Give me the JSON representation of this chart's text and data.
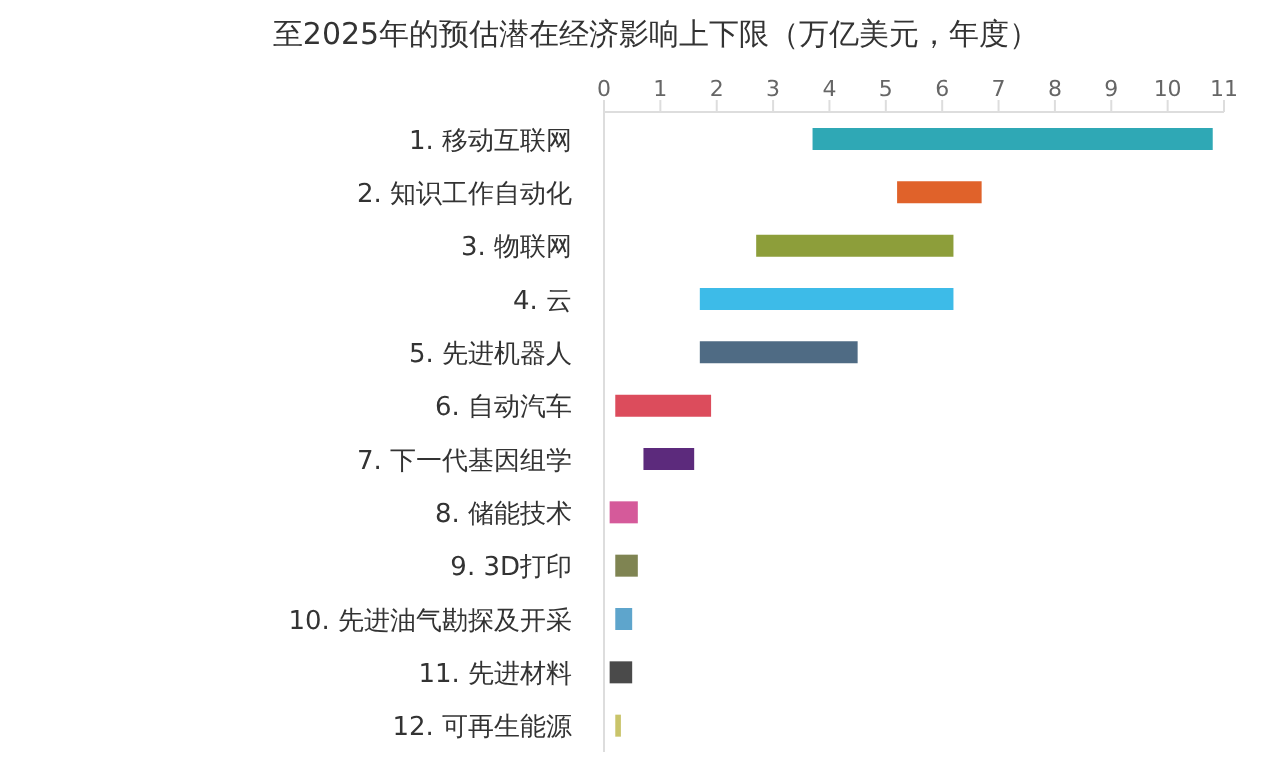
{
  "chart_data": {
    "type": "bar",
    "orientation": "horizontal",
    "title": "至2025年的预估潜在经济影响上下限（万亿美元，年度）",
    "categories": [
      "1.  移动互联网",
      "2.  知识工作自动化",
      "3.  物联网",
      "4.  云",
      "5.  先进机器人",
      "6.  自动汽车",
      "7.  下一代基因组学",
      "8.  储能技术",
      "9.  3D打印",
      "10.  先进油气勘探及开采",
      "11.  先进材料",
      "12.  可再生能源"
    ],
    "base": [
      3.7,
      5.2,
      2.7,
      1.7,
      1.7,
      0.2,
      0.7,
      0.1,
      0.2,
      0.2,
      0.1,
      0.2
    ],
    "values": [
      7.1,
      1.5,
      3.5,
      4.5,
      2.8,
      1.7,
      0.9,
      0.5,
      0.4,
      0.3,
      0.4,
      0.1
    ],
    "colors": [
      "#2fa8b5",
      "#e0622a",
      "#8d9e3a",
      "#3dbbe8",
      "#4f6b84",
      "#dc4c5c",
      "#5c2a7c",
      "#d55a9a",
      "#7f8452",
      "#5ea5cc",
      "#4a4a4a",
      "#c9c46a"
    ],
    "xlim": [
      0,
      11
    ],
    "xticks": [
      0,
      1,
      2,
      3,
      4,
      5,
      6,
      7,
      8,
      9,
      10,
      11
    ],
    "grid": false
  }
}
